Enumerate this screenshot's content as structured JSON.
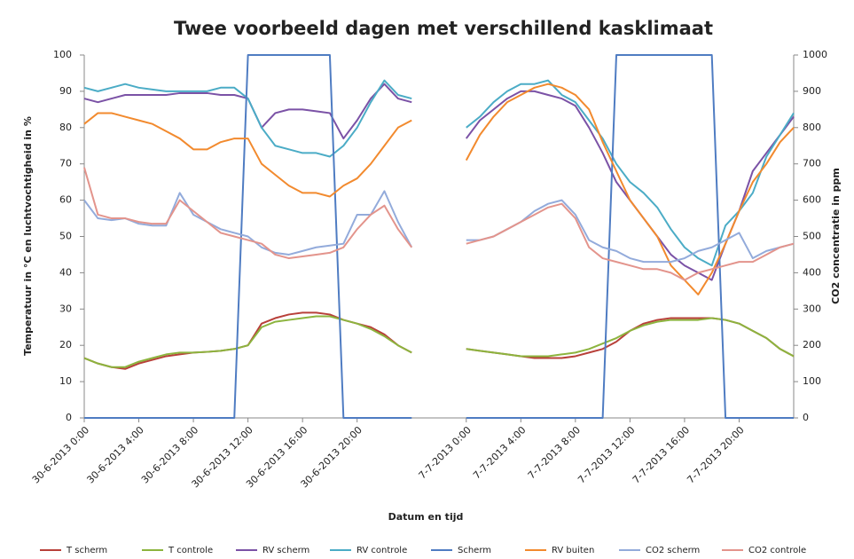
{
  "chart_data": {
    "type": "line",
    "title": "Twee voorbeeld dagen met verschillend kasklimaat",
    "xlabel": "Datum en tijd",
    "ylabel": "Temperatuur in °C en luchtvochtigheid in %",
    "y2label": "CO2 concentratie in ppm",
    "categories": [
      "30-6-2013 0:00",
      null,
      null,
      null,
      "30-6-2013 4:00",
      null,
      null,
      null,
      "30-6-2013 8:00",
      null,
      null,
      null,
      "30-6-2013 12:00",
      null,
      null,
      null,
      "30-6-2013 16:00",
      null,
      null,
      null,
      "30-6-2013 20:00",
      null,
      null,
      null,
      null,
      null,
      null,
      null,
      "7-7-2013 0:00",
      null,
      null,
      null,
      "7-7-2013 4:00",
      null,
      null,
      null,
      "7-7-2013 8:00",
      null,
      null,
      null,
      "7-7-2013 12:00",
      null,
      null,
      null,
      "7-7-2013 16:00",
      null,
      null,
      null,
      "7-7-2013 20:00",
      null,
      null,
      null,
      null
    ],
    "series": [
      {
        "name": "T scherm",
        "color": "#b8403a",
        "values": [
          16.5,
          15,
          14,
          13.5,
          15,
          16,
          17,
          17.5,
          18,
          18.2,
          18.5,
          19,
          20,
          26,
          27.5,
          28.5,
          29,
          29,
          28.5,
          27,
          26,
          25,
          23,
          20,
          18,
          null,
          null,
          null,
          19,
          18.5,
          18,
          17.5,
          17,
          16.5,
          16.5,
          16.5,
          17,
          18,
          19,
          21,
          24,
          26,
          27,
          27.5,
          27.5,
          27.5,
          27.5,
          27,
          26,
          24,
          22,
          19,
          17
        ]
      },
      {
        "name": "T controle",
        "color": "#8cb43e",
        "values": [
          16.5,
          15,
          14,
          14,
          15.5,
          16.5,
          17.5,
          18,
          18,
          18.2,
          18.5,
          19,
          20,
          25,
          26.5,
          27,
          27.5,
          28,
          28,
          27,
          26,
          24.5,
          22.5,
          20,
          18,
          null,
          null,
          null,
          19,
          18.5,
          18,
          17.5,
          17,
          17,
          17,
          17.5,
          18,
          19,
          20.5,
          22,
          24,
          25.5,
          26.5,
          27,
          27,
          27,
          27.5,
          27,
          26,
          24,
          22,
          19,
          17
        ]
      },
      {
        "name": "RV scherm",
        "color": "#7b52a6",
        "values": [
          88,
          87,
          88,
          89,
          89,
          89,
          89,
          89.5,
          89.5,
          89.5,
          89,
          89,
          88,
          80,
          84,
          85,
          85,
          84.5,
          84,
          77,
          82,
          88,
          92,
          88,
          87,
          null,
          null,
          null,
          77,
          82,
          85,
          88,
          90,
          90,
          89,
          88,
          86,
          80,
          73,
          65,
          60,
          55,
          50,
          45,
          42,
          40,
          38,
          48,
          57,
          68,
          73,
          78,
          83
        ]
      },
      {
        "name": "RV controle",
        "color": "#4bacc6",
        "values": [
          91,
          90,
          91,
          92,
          91,
          90.5,
          90,
          90,
          90,
          90,
          91,
          91,
          88,
          80,
          75,
          74,
          73,
          73,
          72,
          75,
          80,
          87,
          93,
          89,
          88,
          null,
          null,
          null,
          80,
          83,
          87,
          90,
          92,
          92,
          93,
          89,
          87,
          82,
          77,
          70,
          65,
          62,
          58,
          52,
          47,
          44,
          42,
          53,
          57,
          62,
          72,
          78,
          84
        ]
      },
      {
        "name": "Scherm",
        "color": "#4f7cc2",
        "values": [
          0,
          0,
          0,
          0,
          0,
          0,
          0,
          0,
          0,
          0,
          0,
          0,
          100,
          100,
          100,
          100,
          100,
          100,
          100,
          0,
          0,
          0,
          0,
          0,
          0,
          null,
          null,
          null,
          0,
          0,
          0,
          0,
          0,
          0,
          0,
          0,
          0,
          0,
          0,
          100,
          100,
          100,
          100,
          100,
          100,
          100,
          100,
          0,
          0,
          0,
          0,
          0,
          0
        ]
      },
      {
        "name": "RV buiten",
        "color": "#f28a2e",
        "values": [
          81,
          84,
          84,
          83,
          82,
          81,
          79,
          77,
          74,
          74,
          76,
          77,
          77,
          70,
          67,
          64,
          62,
          62,
          61,
          64,
          66,
          70,
          75,
          80,
          82,
          null,
          null,
          null,
          71,
          78,
          83,
          87,
          89,
          91,
          92,
          91,
          89,
          85,
          76,
          68,
          60,
          55,
          50,
          42,
          38,
          34,
          40,
          48,
          57,
          65,
          70,
          76,
          80
        ]
      },
      {
        "name": "CO2 scherm",
        "color": "#93abdb",
        "axis": "y2",
        "values": [
          600,
          550,
          545,
          550,
          535,
          530,
          530,
          620,
          560,
          540,
          520,
          510,
          500,
          470,
          455,
          450,
          460,
          470,
          475,
          480,
          560,
          560,
          625,
          540,
          470,
          null,
          null,
          null,
          490,
          490,
          500,
          520,
          540,
          570,
          590,
          600,
          560,
          490,
          470,
          460,
          440,
          430,
          430,
          430,
          440,
          460,
          470,
          490,
          510,
          440,
          460,
          470,
          480
        ]
      },
      {
        "name": "CO2 controle",
        "color": "#e3948c",
        "axis": "y2",
        "values": [
          690,
          560,
          550,
          550,
          540,
          535,
          535,
          600,
          570,
          540,
          510,
          500,
          490,
          480,
          450,
          440,
          445,
          450,
          455,
          470,
          520,
          560,
          585,
          520,
          470,
          null,
          null,
          null,
          480,
          490,
          500,
          520,
          540,
          560,
          580,
          590,
          550,
          470,
          440,
          430,
          420,
          410,
          410,
          400,
          380,
          400,
          410,
          420,
          430,
          430,
          450,
          470,
          480
        ]
      }
    ],
    "ylim": [
      0,
      100
    ],
    "yticks": [
      0,
      10,
      20,
      30,
      40,
      50,
      60,
      70,
      80,
      90,
      100
    ],
    "y2lim": [
      0,
      1000
    ],
    "y2ticks": [
      0,
      100,
      200,
      300,
      400,
      500,
      600,
      700,
      800,
      900,
      1000
    ],
    "grid": false
  }
}
